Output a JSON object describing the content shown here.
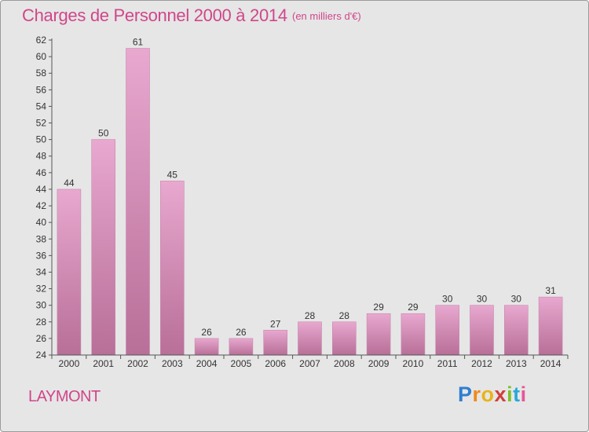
{
  "header": {
    "title": "Charges de Personnel 2000 à 2014",
    "subtitle": "(en milliers d'€)"
  },
  "footer": {
    "commune": "LAYMONT",
    "logo": "Proxiti",
    "logo_letters": [
      {
        "ch": "P",
        "color": "#2e7fd0"
      },
      {
        "ch": "r",
        "color": "#f08a1c"
      },
      {
        "ch": "o",
        "color": "#e8b41c"
      },
      {
        "ch": "x",
        "color": "#d23d3d"
      },
      {
        "ch": "i",
        "color": "#7fbf2a"
      },
      {
        "ch": "t",
        "color": "#29a8d8"
      },
      {
        "ch": "i",
        "color": "#e6559a"
      }
    ]
  },
  "colors": {
    "accent": "#d0468a",
    "bar_light": "#e8a8cf",
    "bar_dark": "#b86f98",
    "background": "#e6e6e6"
  },
  "chart_data": {
    "type": "bar",
    "categories": [
      "2000",
      "2001",
      "2002",
      "2003",
      "2004",
      "2005",
      "2006",
      "2007",
      "2008",
      "2009",
      "2010",
      "2011",
      "2012",
      "2013",
      "2014"
    ],
    "values": [
      44,
      50,
      61,
      45,
      26,
      26,
      27,
      28,
      28,
      29,
      29,
      30,
      30,
      30,
      31
    ],
    "ylim": [
      24,
      62
    ],
    "yticks": [
      24,
      26,
      28,
      30,
      32,
      34,
      36,
      38,
      40,
      42,
      44,
      46,
      48,
      50,
      52,
      54,
      56,
      58,
      60,
      62
    ],
    "grid": false,
    "legend": "none"
  }
}
